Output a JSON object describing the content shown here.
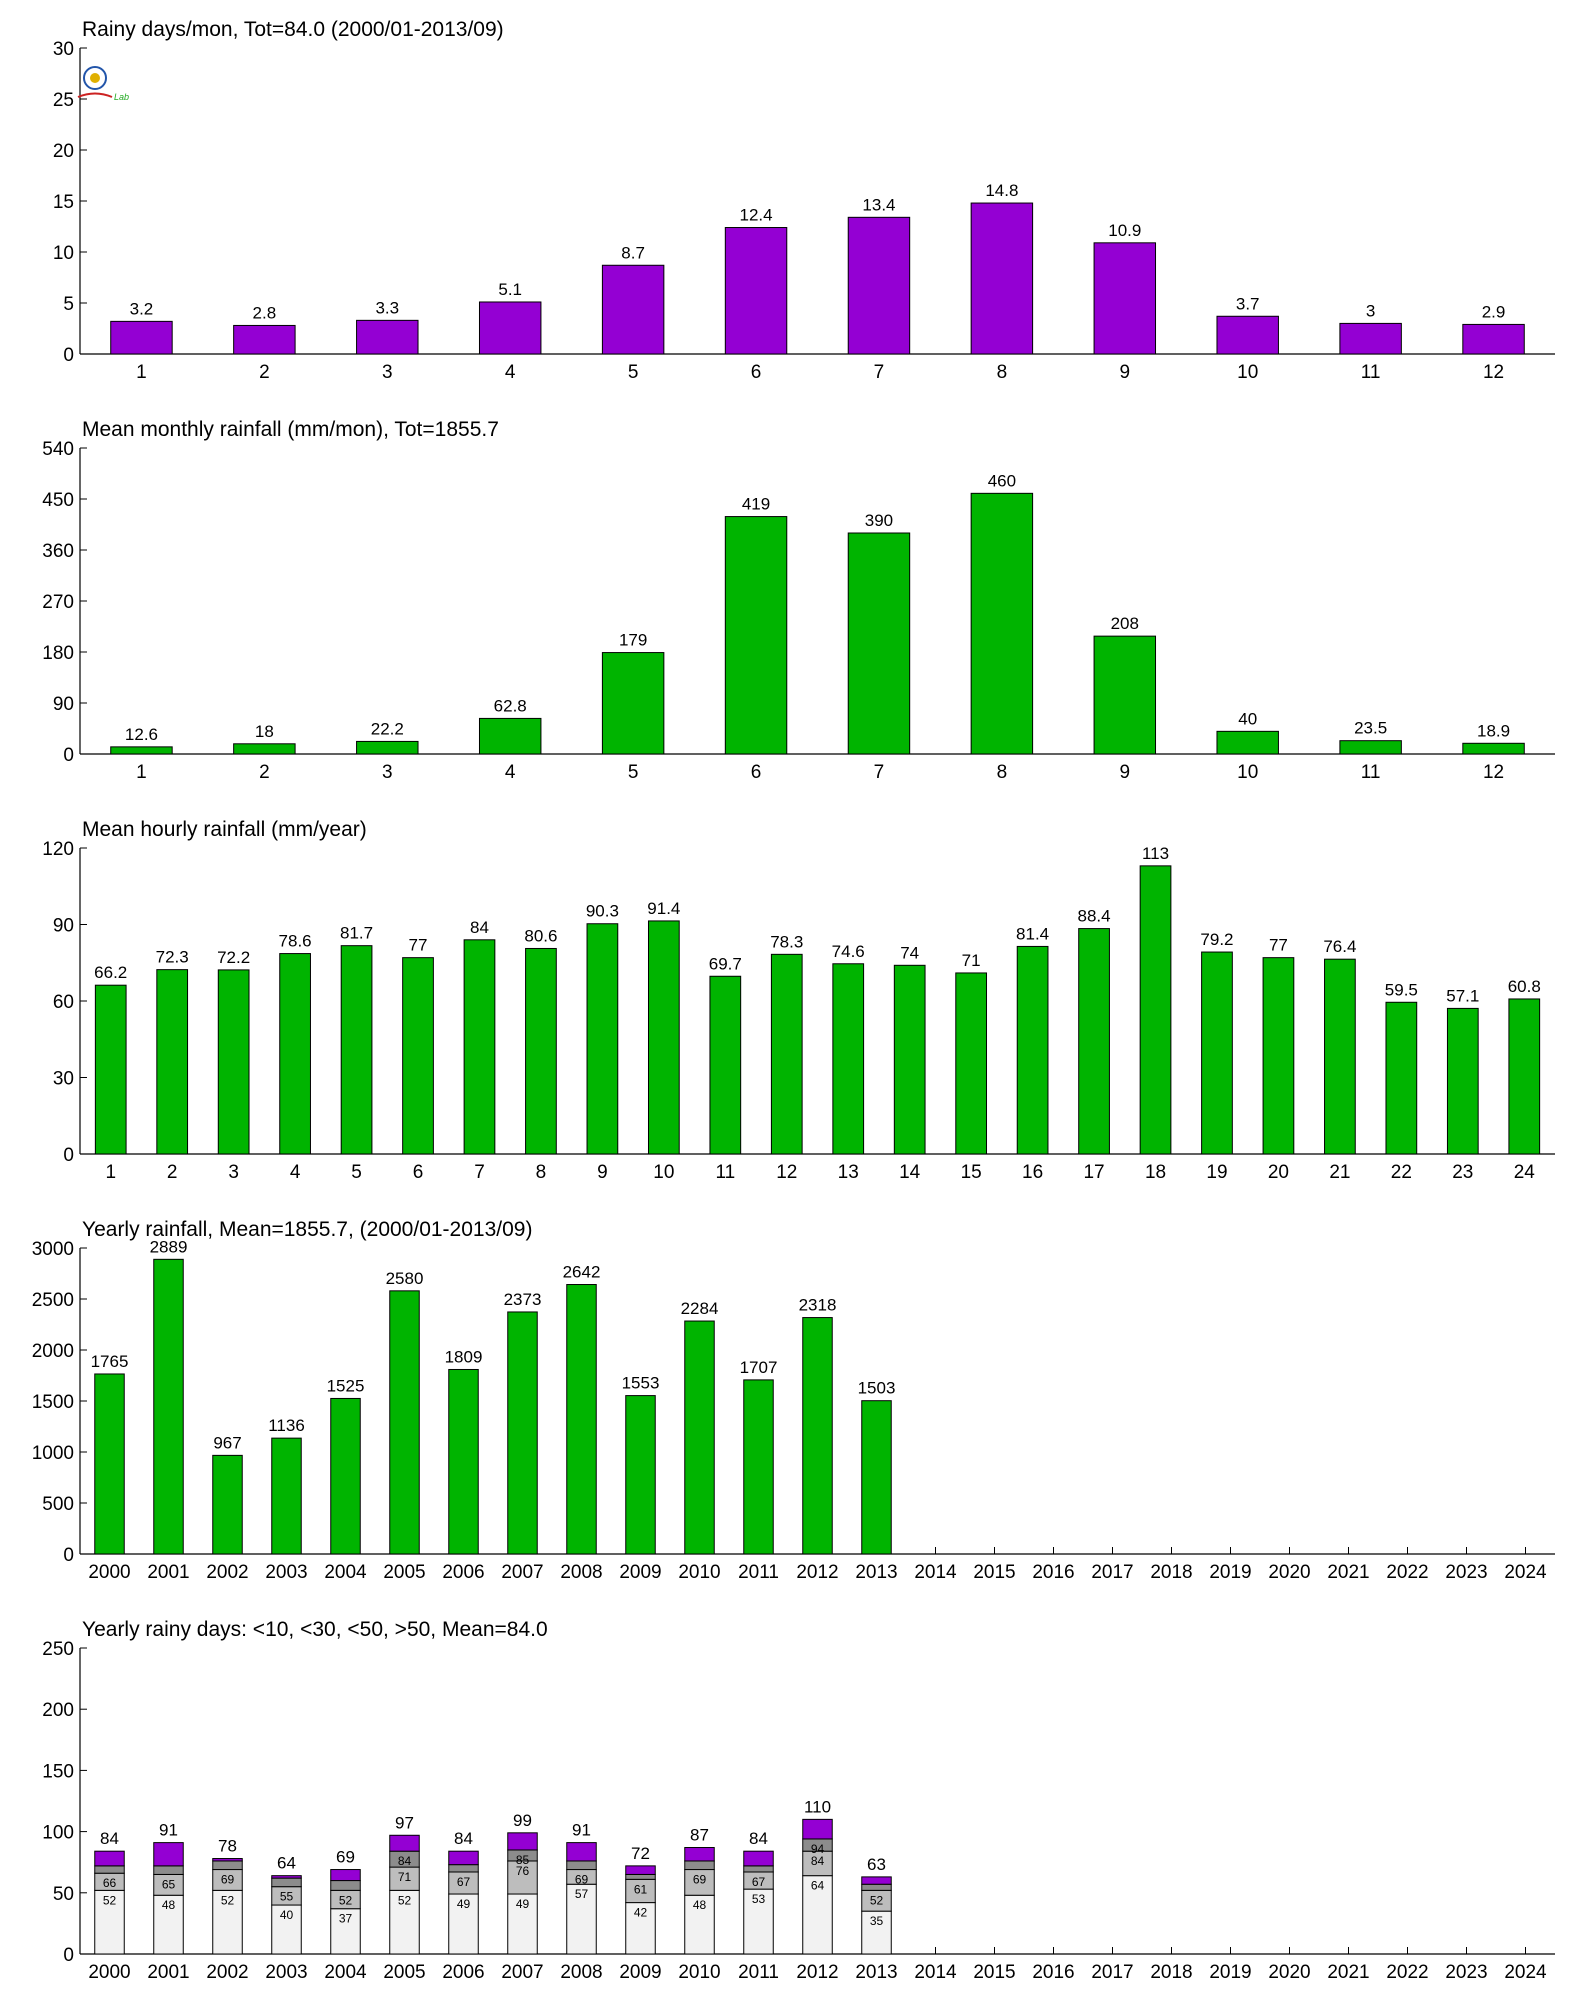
{
  "colors": {
    "purple": "#9400d3",
    "green": "#00b400",
    "lightgray": "#f2f2f2",
    "midgray": "#bdbdbd",
    "darkgray": "#8c8c8c",
    "axis": "#000000"
  },
  "logo": {
    "text": "Lab"
  },
  "chart_data": [
    {
      "id": "rainy-days-monthly",
      "type": "bar",
      "title": "Rainy days/mon, Tot=84.0 (2000/01-2013/09)",
      "categories": [
        "1",
        "2",
        "3",
        "4",
        "5",
        "6",
        "7",
        "8",
        "9",
        "10",
        "11",
        "12"
      ],
      "values": [
        3.2,
        2.8,
        3.3,
        5.1,
        8.7,
        12.4,
        13.4,
        14.8,
        10.9,
        3.7,
        3,
        2.9
      ],
      "value_labels": [
        "3.2",
        "2.8",
        "3.3",
        "5.1",
        "8.7",
        "12.4",
        "13.4",
        "14.8",
        "10.9",
        "3.7",
        "3",
        "2.9"
      ],
      "ylim": [
        0,
        30
      ],
      "yticks": [
        "0",
        "5",
        "10",
        "15",
        "20",
        "25",
        "30"
      ],
      "color": "#9400d3",
      "xlabel": "",
      "ylabel": "",
      "grid": false
    },
    {
      "id": "mean-monthly-rainfall",
      "type": "bar",
      "title": "Mean monthly rainfall (mm/mon), Tot=1855.7",
      "categories": [
        "1",
        "2",
        "3",
        "4",
        "5",
        "6",
        "7",
        "8",
        "9",
        "10",
        "11",
        "12"
      ],
      "values": [
        12.6,
        18,
        22.2,
        62.8,
        179,
        419,
        390,
        460,
        208,
        40,
        23.5,
        18.9
      ],
      "value_labels": [
        "12.6",
        "18",
        "22.2",
        "62.8",
        "179",
        "419",
        "390",
        "460",
        "208",
        "40",
        "23.5",
        "18.9"
      ],
      "ylim": [
        0,
        540
      ],
      "yticks": [
        "0",
        "90",
        "180",
        "270",
        "360",
        "450",
        "540"
      ],
      "color": "#00b400",
      "xlabel": "",
      "ylabel": "",
      "grid": false
    },
    {
      "id": "mean-hourly-rainfall",
      "type": "bar",
      "title": "Mean hourly rainfall (mm/year)",
      "categories": [
        "1",
        "2",
        "3",
        "4",
        "5",
        "6",
        "7",
        "8",
        "9",
        "10",
        "11",
        "12",
        "13",
        "14",
        "15",
        "16",
        "17",
        "18",
        "19",
        "20",
        "21",
        "22",
        "23",
        "24"
      ],
      "values": [
        66.2,
        72.3,
        72.2,
        78.6,
        81.7,
        77,
        84,
        80.6,
        90.3,
        91.4,
        69.7,
        78.3,
        74.6,
        74,
        71,
        81.4,
        88.4,
        113,
        79.2,
        77,
        76.4,
        59.5,
        57.1,
        60.8
      ],
      "value_labels": [
        "66.2",
        "72.3",
        "72.2",
        "78.6",
        "81.7",
        "77",
        "84",
        "80.6",
        "90.3",
        "91.4",
        "69.7",
        "78.3",
        "74.6",
        "74",
        "71",
        "81.4",
        "88.4",
        "113",
        "79.2",
        "77",
        "76.4",
        "59.5",
        "57.1",
        "60.8"
      ],
      "ylim": [
        0,
        120
      ],
      "yticks": [
        "0",
        "30",
        "60",
        "90",
        "120"
      ],
      "color": "#00b400",
      "xlabel": "",
      "ylabel": "",
      "grid": false
    },
    {
      "id": "yearly-rainfall",
      "type": "bar",
      "title": "Yearly rainfall, Mean=1855.7, (2000/01-2013/09)",
      "categories": [
        "2000",
        "2001",
        "2002",
        "2003",
        "2004",
        "2005",
        "2006",
        "2007",
        "2008",
        "2009",
        "2010",
        "2011",
        "2012",
        "2013",
        "2014",
        "2015",
        "2016",
        "2017",
        "2018",
        "2019",
        "2020",
        "2021",
        "2022",
        "2023",
        "2024"
      ],
      "values": [
        1765,
        2889,
        967,
        1136,
        1525,
        2580,
        1809,
        2373,
        2642,
        1553,
        2284,
        1707,
        2318,
        1503,
        null,
        null,
        null,
        null,
        null,
        null,
        null,
        null,
        null,
        null,
        null
      ],
      "value_labels": [
        "1765",
        "2889",
        "967",
        "1136",
        "1525",
        "2580",
        "1809",
        "2373",
        "2642",
        "1553",
        "2284",
        "1707",
        "2318",
        "1503",
        "",
        "",
        "",
        "",
        "",
        "",
        "",
        "",
        "",
        "",
        ""
      ],
      "ylim": [
        0,
        3000
      ],
      "yticks": [
        "0",
        "500",
        "1000",
        "1500",
        "2000",
        "2500",
        "3000"
      ],
      "color": "#00b400",
      "xlabel": "",
      "ylabel": "",
      "grid": false
    },
    {
      "id": "yearly-rainy-days",
      "type": "bar",
      "stacked": true,
      "title": "Yearly rainy days: <10, <30, <50, >50, Mean=84.0",
      "categories": [
        "2000",
        "2001",
        "2002",
        "2003",
        "2004",
        "2005",
        "2006",
        "2007",
        "2008",
        "2009",
        "2010",
        "2011",
        "2012",
        "2013",
        "2014",
        "2015",
        "2016",
        "2017",
        "2018",
        "2019",
        "2020",
        "2021",
        "2022",
        "2023",
        "2024"
      ],
      "cumulative": {
        "lt10": [
          52,
          48,
          52,
          40,
          37,
          52,
          49,
          49,
          57,
          42,
          48,
          53,
          64,
          35,
          null,
          null,
          null,
          null,
          null,
          null,
          null,
          null,
          null,
          null,
          null
        ],
        "lt30": [
          66,
          65,
          69,
          55,
          52,
          71,
          67,
          76,
          69,
          61,
          69,
          67,
          84,
          52,
          null,
          null,
          null,
          null,
          null,
          null,
          null,
          null,
          null,
          null,
          null
        ],
        "lt50": [
          72,
          72,
          76,
          62,
          60,
          84,
          73,
          85,
          76,
          65,
          76,
          72,
          94,
          57,
          null,
          null,
          null,
          null,
          null,
          null,
          null,
          null,
          null,
          null,
          null
        ],
        "total": [
          84,
          91,
          78,
          64,
          69,
          97,
          84,
          99,
          91,
          72,
          87,
          84,
          110,
          63,
          null,
          null,
          null,
          null,
          null,
          null,
          null,
          null,
          null,
          null,
          null
        ]
      },
      "value_labels": [
        "84",
        "91",
        "78",
        "64",
        "69",
        "97",
        "84",
        "99",
        "91",
        "72",
        "87",
        "84",
        "110",
        "63",
        "",
        "",
        "",
        "",
        "",
        "",
        "",
        "",
        "",
        "",
        ""
      ],
      "ylim": [
        0,
        250
      ],
      "yticks": [
        "0",
        "50",
        "100",
        "150",
        "200",
        "250"
      ],
      "segment_colors": [
        "#f2f2f2",
        "#bdbdbd",
        "#8c8c8c",
        "#9400d3"
      ],
      "xlabel": "",
      "ylabel": "",
      "grid": false
    }
  ]
}
